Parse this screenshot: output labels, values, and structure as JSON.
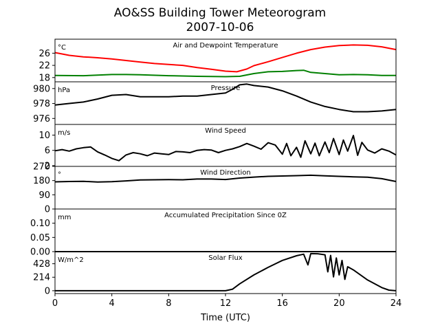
{
  "figure": {
    "title_line1": "AO&SS Building Tower Meteorogram",
    "title_line2": "2007-10-06",
    "xlabel": "Time (UTC)",
    "x_ticks": [
      "0",
      "4",
      "8",
      "12",
      "16",
      "20",
      "24"
    ],
    "x_tick_values": [
      0,
      4,
      8,
      12,
      16,
      20,
      24
    ]
  },
  "chart_data": [
    {
      "type": "line",
      "title": "Air and Dewpoint Temperature",
      "unit": "°C",
      "ylim": [
        16.6,
        30.6
      ],
      "y_ticks": [
        18,
        22,
        26
      ],
      "xlim": [
        0,
        24
      ],
      "series": [
        {
          "color": "#ff0000",
          "x": [
            0,
            1,
            2,
            3,
            4,
            5,
            6,
            7,
            8,
            9,
            10,
            11,
            12,
            12.8,
            13.5,
            14,
            15,
            16,
            17,
            18,
            19,
            20,
            21,
            22,
            23,
            24
          ],
          "values": [
            26.2,
            25.3,
            24.8,
            24.5,
            24.1,
            23.6,
            23.1,
            22.6,
            22.3,
            22.0,
            21.3,
            20.7,
            20.1,
            19.9,
            20.8,
            21.9,
            23.2,
            24.6,
            26.0,
            27.2,
            28.0,
            28.5,
            28.7,
            28.6,
            28.1,
            27.2
          ]
        },
        {
          "color": "#008000",
          "x": [
            0,
            2,
            4,
            5,
            6,
            8,
            10,
            12,
            13,
            14,
            15,
            16,
            17,
            17.5,
            18,
            19,
            20,
            21,
            22,
            23,
            24
          ],
          "values": [
            18.7,
            18.6,
            19.0,
            19.0,
            18.9,
            18.6,
            18.4,
            18.3,
            18.4,
            19.3,
            19.9,
            20.0,
            20.3,
            20.4,
            19.7,
            19.3,
            18.9,
            19.0,
            18.9,
            18.7,
            18.7
          ]
        }
      ]
    },
    {
      "type": "line",
      "title": "Pressure",
      "unit": "hPa",
      "ylim": [
        975.2,
        980.9
      ],
      "y_ticks": [
        976,
        978,
        980
      ],
      "xlim": [
        0,
        24
      ],
      "series": [
        {
          "color": "#000000",
          "x": [
            0,
            1,
            2,
            3,
            4,
            5,
            6,
            7,
            8,
            9,
            10,
            11,
            12,
            12.5,
            13,
            13.5,
            14,
            15,
            16,
            17,
            18,
            19,
            20,
            21,
            22,
            23,
            24
          ],
          "values": [
            977.8,
            978.0,
            978.2,
            978.6,
            979.1,
            979.2,
            978.9,
            978.9,
            978.9,
            979.0,
            979.0,
            979.2,
            979.4,
            979.9,
            980.5,
            980.6,
            980.4,
            980.2,
            979.7,
            979.0,
            978.2,
            977.6,
            977.2,
            976.9,
            976.9,
            977.0,
            977.2
          ]
        }
      ]
    },
    {
      "type": "line",
      "title": "Wind Speed",
      "unit": "m/s",
      "ylim": [
        1.8,
        12.8
      ],
      "y_ticks": [
        2,
        6,
        10
      ],
      "xlim": [
        0,
        24
      ],
      "series": [
        {
          "color": "#000000",
          "x": [
            0,
            0.5,
            1,
            1.5,
            2,
            2.5,
            3,
            3.5,
            4,
            4.5,
            5,
            5.5,
            6,
            6.5,
            7,
            7.5,
            8,
            8.5,
            9,
            9.5,
            10,
            10.5,
            11,
            11.5,
            12,
            12.5,
            13,
            13.5,
            14,
            14.5,
            15,
            15.5,
            16,
            16.3,
            16.6,
            17,
            17.3,
            17.6,
            18,
            18.3,
            18.6,
            19,
            19.3,
            19.6,
            20,
            20.3,
            20.6,
            21,
            21.3,
            21.6,
            22,
            22.5,
            23,
            23.5,
            24
          ],
          "values": [
            5.9,
            6.2,
            5.8,
            6.4,
            6.7,
            6.9,
            5.6,
            4.8,
            3.9,
            3.3,
            4.8,
            5.4,
            5.1,
            4.6,
            5.3,
            5.1,
            4.9,
            5.7,
            5.6,
            5.4,
            6.0,
            6.2,
            6.1,
            5.4,
            6.0,
            6.4,
            7.0,
            7.8,
            7.1,
            6.3,
            8.0,
            7.4,
            5.0,
            7.8,
            4.6,
            6.8,
            4.2,
            8.5,
            5.1,
            7.9,
            4.6,
            8.2,
            5.4,
            9.1,
            4.9,
            8.7,
            5.8,
            9.9,
            4.7,
            8.1,
            6.1,
            5.3,
            6.4,
            5.8,
            4.8
          ]
        }
      ]
    },
    {
      "type": "line",
      "title": "Wind Direction",
      "unit": "°",
      "ylim": [
        0,
        270
      ],
      "y_ticks": [
        0,
        90,
        180,
        270
      ],
      "xlim": [
        0,
        24
      ],
      "series": [
        {
          "color": "#000000",
          "x": [
            0,
            1,
            2,
            3,
            4,
            5,
            6,
            7,
            8,
            9,
            10,
            11,
            12,
            13,
            14,
            15,
            16,
            17,
            18,
            19,
            20,
            21,
            22,
            23,
            24
          ],
          "values": [
            172,
            174,
            175,
            171,
            173,
            178,
            184,
            185,
            186,
            185,
            190,
            190,
            187,
            196,
            202,
            207,
            209,
            211,
            214,
            210,
            207,
            204,
            201,
            192,
            174
          ]
        }
      ]
    },
    {
      "type": "line",
      "title": "Accumulated Precipitation Since 0Z",
      "unit": "mm",
      "ylim": [
        0,
        0.15
      ],
      "y_ticks": [
        0.0,
        0.05,
        0.1
      ],
      "y_tick_labels": [
        "0.00",
        "0.05",
        "0.10"
      ],
      "xlim": [
        0,
        24
      ],
      "series": [
        {
          "color": "#000000",
          "x": [
            0,
            24
          ],
          "values": [
            0,
            0
          ]
        }
      ]
    },
    {
      "type": "line",
      "title": "Solar Flux",
      "unit": "W/m^2",
      "ylim": [
        -45,
        620
      ],
      "y_ticks": [
        0,
        214,
        428
      ],
      "xlim": [
        0,
        24
      ],
      "series": [
        {
          "color": "#000000",
          "x": [
            0,
            4,
            8,
            12,
            12.5,
            13,
            14,
            15,
            16,
            17,
            17.5,
            17.8,
            18,
            18.5,
            19,
            19.2,
            19.4,
            19.6,
            19.8,
            20,
            20.2,
            20.4,
            20.6,
            21,
            22,
            23,
            23.5,
            24
          ],
          "values": [
            0,
            0,
            0,
            0,
            25,
            110,
            250,
            370,
            480,
            555,
            580,
            410,
            588,
            586,
            570,
            300,
            560,
            220,
            520,
            250,
            480,
            180,
            380,
            330,
            170,
            50,
            10,
            0
          ]
        }
      ]
    }
  ]
}
